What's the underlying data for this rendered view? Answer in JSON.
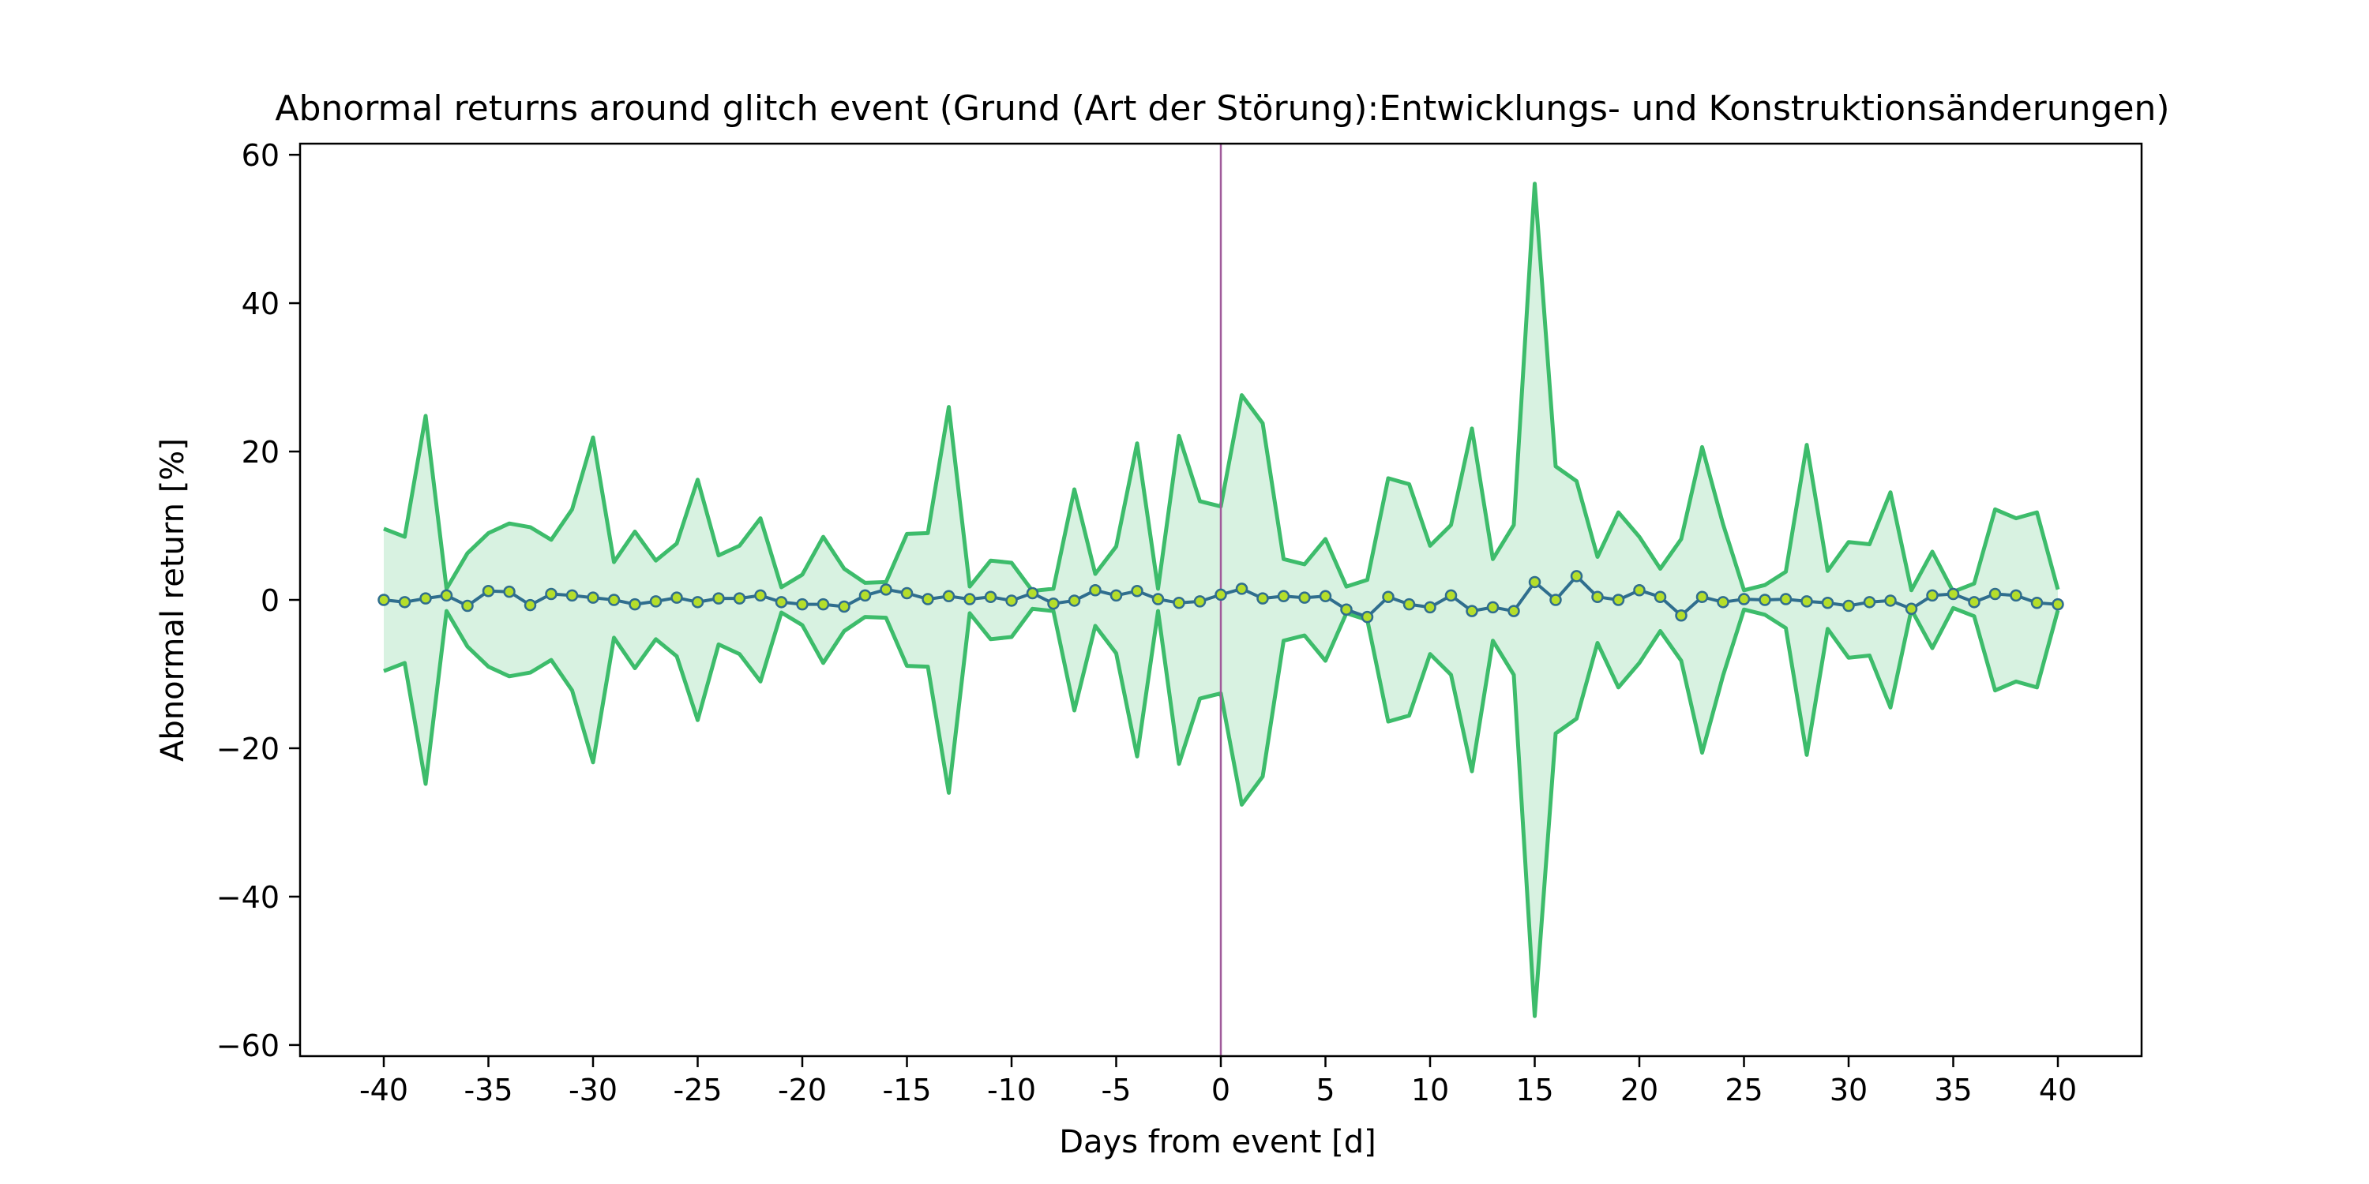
{
  "chart_data": {
    "type": "line",
    "title": "Abnormal returns around glitch event (Grund (Art der Störung):Entwicklungs- und Konstruktionsänderungen)",
    "xlabel": "Days from event [d]",
    "ylabel": "Abnormal return [%]",
    "xlim": [
      -44,
      44
    ],
    "ylim": [
      -61.5,
      61.5
    ],
    "x_ticks": [
      -40,
      -35,
      -30,
      -25,
      -20,
      -15,
      -10,
      -5,
      0,
      5,
      10,
      15,
      20,
      25,
      30,
      35,
      40
    ],
    "x_tick_labels": [
      "-40",
      "-35",
      "-30",
      "-25",
      "-20",
      "-15",
      "-10",
      "-5",
      "0",
      "5",
      "10",
      "15",
      "20",
      "25",
      "30",
      "35",
      "40"
    ],
    "y_ticks": [
      -60,
      -40,
      -20,
      0,
      20,
      40,
      60
    ],
    "y_tick_labels": [
      "−60",
      "−40",
      "−20",
      "0",
      "20",
      "40",
      "60"
    ],
    "event_line_x": 0,
    "grid": false,
    "colors": {
      "mean_line": "#2f6e8e",
      "marker_face": "#b5de2b",
      "band_edge": "#3dbc6b",
      "band_fill": "#d8f2e1",
      "event_line": "#a05a9a"
    },
    "series": [
      {
        "x": [
          -40,
          -39,
          -38,
          -37,
          -36,
          -35,
          -34,
          -33,
          -32,
          -31,
          -30,
          -29,
          -28,
          -27,
          -26,
          -25,
          -24,
          -23,
          -22,
          -21,
          -20,
          -19,
          -18,
          -17,
          -16,
          -15,
          -14,
          -13,
          -12,
          -11,
          -10,
          -9,
          -8,
          -7,
          -6,
          -5,
          -4,
          -3,
          -2,
          -1,
          0,
          1,
          2,
          3,
          4,
          5,
          6,
          7,
          8,
          9,
          10,
          11,
          12,
          13,
          14,
          15,
          16,
          17,
          18,
          19,
          20,
          21,
          22,
          23,
          24,
          25,
          26,
          27,
          28,
          29,
          30,
          31,
          32,
          33,
          34,
          35,
          36,
          37,
          38,
          39,
          40
        ],
        "mean": [
          0,
          -0.3,
          0.2,
          0.6,
          -0.8,
          1.2,
          1.1,
          -0.7,
          0.8,
          0.6,
          0.3,
          0,
          -0.6,
          -0.2,
          0.3,
          -0.3,
          0.2,
          0.2,
          0.6,
          -0.3,
          -0.6,
          -0.6,
          -0.9,
          0.6,
          1.4,
          0.9,
          0.1,
          0.5,
          0.1,
          0.4,
          -0.1,
          0.9,
          -0.5,
          -0.1,
          1.3,
          0.6,
          1.2,
          0.1,
          -0.4,
          -0.2,
          0.7,
          1.5,
          0.2,
          0.5,
          0.3,
          0.5,
          -1.3,
          -2.3,
          0.4,
          -0.6,
          -1.0,
          0.6,
          -1.5,
          -1.0,
          -1.5,
          2.4,
          0,
          3.2,
          0.4,
          0,
          1.3,
          0.4,
          -2.1,
          0.4,
          -0.3,
          0.1,
          0,
          0.1,
          -0.2,
          -0.4,
          -0.8,
          -0.3,
          -0.1,
          -1.2,
          0.6,
          0.8,
          -0.3,
          0.8,
          0.6,
          -0.4,
          -0.6
        ],
        "upper": [
          9.6,
          8.5,
          24.8,
          1.5,
          6.3,
          9.0,
          10.3,
          9.8,
          8.1,
          12.2,
          21.9,
          5.1,
          9.2,
          5.3,
          7.6,
          16.2,
          6.0,
          7.3,
          11.0,
          1.7,
          3.4,
          8.5,
          4.2,
          2.3,
          2.4,
          8.9,
          9.0,
          26.0,
          1.8,
          5.3,
          5.0,
          1.2,
          1.5,
          14.9,
          3.5,
          7.2,
          21.1,
          1.5,
          22.1,
          13.3,
          12.6,
          27.6,
          23.8,
          5.5,
          4.8,
          8.2,
          1.8,
          2.7,
          16.4,
          15.6,
          7.3,
          10.1,
          23.1,
          5.5,
          10.1,
          56.1,
          18.0,
          16.0,
          5.8,
          11.8,
          8.5,
          4.2,
          8.2,
          20.6,
          10.2,
          1.3,
          2.0,
          3.8,
          20.9,
          3.9,
          7.8,
          7.5,
          14.5,
          1.3,
          6.5,
          1.1,
          2.2,
          12.2,
          11.0,
          11.8,
          1.4
        ],
        "lower": [
          -9.6,
          -8.5,
          -24.8,
          -1.5,
          -6.3,
          -9.0,
          -10.3,
          -9.8,
          -8.1,
          -12.2,
          -21.9,
          -5.1,
          -9.2,
          -5.3,
          -7.6,
          -16.2,
          -6.0,
          -7.3,
          -11.0,
          -1.7,
          -3.4,
          -8.5,
          -4.2,
          -2.3,
          -2.4,
          -8.9,
          -9.0,
          -26.0,
          -1.8,
          -5.3,
          -5.0,
          -1.2,
          -1.5,
          -14.9,
          -3.5,
          -7.2,
          -21.1,
          -1.5,
          -22.1,
          -13.3,
          -12.6,
          -27.6,
          -23.8,
          -5.5,
          -4.8,
          -8.2,
          -1.8,
          -2.7,
          -16.4,
          -15.6,
          -7.3,
          -10.1,
          -23.1,
          -5.5,
          -10.1,
          -56.1,
          -18.0,
          -16.0,
          -5.8,
          -11.8,
          -8.5,
          -4.2,
          -8.2,
          -20.6,
          -10.2,
          -1.3,
          -2.0,
          -3.8,
          -20.9,
          -3.9,
          -7.8,
          -7.5,
          -14.5,
          -1.3,
          -6.5,
          -1.1,
          -2.2,
          -12.2,
          -11.0,
          -11.8,
          -1.4
        ]
      }
    ]
  }
}
